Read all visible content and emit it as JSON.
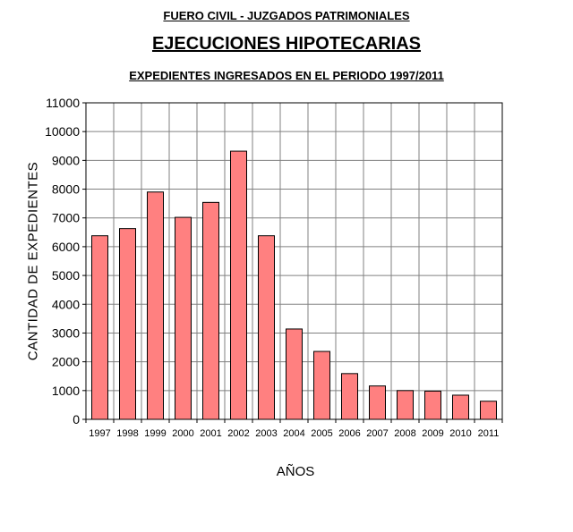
{
  "header": {
    "line1": "FUERO CIVIL - JUZGADOS PATRIMONIALES",
    "line2": "EJECUCIONES HIPOTECARIAS",
    "line3": "EXPEDIENTES INGRESADOS EN EL PERIODO 1997/2011"
  },
  "chart_data": {
    "type": "bar",
    "title": "EJECUCIONES HIPOTECARIAS",
    "subtitle": "EXPEDIENTES INGRESADOS EN EL PERIODO 1997/2011",
    "xlabel": "AÑOS",
    "ylabel": "CANTIDAD DE EXPEDIENTES",
    "categories": [
      "1997",
      "1998",
      "1999",
      "2000",
      "2001",
      "2002",
      "2003",
      "2004",
      "2005",
      "2006",
      "2007",
      "2008",
      "2009",
      "2010",
      "2011"
    ],
    "values": [
      6380,
      6630,
      7900,
      7020,
      7540,
      9320,
      6380,
      3140,
      2360,
      1590,
      1160,
      1000,
      980,
      840,
      630
    ],
    "ylim": [
      0,
      11000
    ],
    "yticks": [
      "0",
      "1000",
      "2000",
      "3000",
      "4000",
      "5000",
      "6000",
      "7000",
      "8000",
      "9000",
      "10000",
      "11000"
    ],
    "grid": true,
    "legend": "none",
    "bar_color": "#ff8080",
    "grid_color": "#808080"
  }
}
